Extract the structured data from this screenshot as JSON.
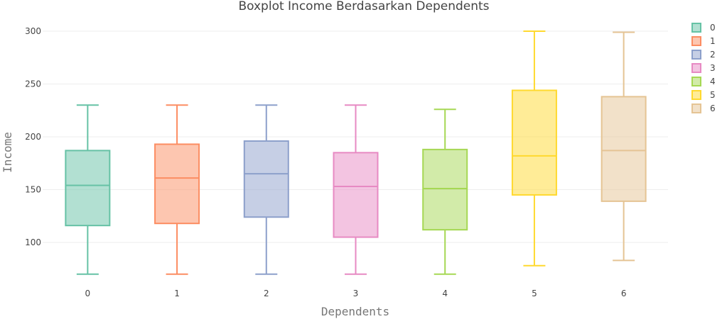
{
  "chart_data": {
    "type": "box",
    "title": "Boxplot Income Berdasarkan Dependents",
    "xlabel": "Dependents",
    "ylabel": "Income",
    "ylim": [
      60,
      305
    ],
    "yticks": [
      100,
      150,
      200,
      250,
      300
    ],
    "categories": [
      "0",
      "1",
      "2",
      "3",
      "4",
      "5",
      "6"
    ],
    "series": [
      {
        "name": "0",
        "color": "#66c2a5",
        "min": 70,
        "q1": 116,
        "median": 154,
        "q3": 187,
        "max": 230
      },
      {
        "name": "1",
        "color": "#fc8d62",
        "min": 70,
        "q1": 118,
        "median": 161,
        "q3": 193,
        "max": 230
      },
      {
        "name": "2",
        "color": "#8da0cb",
        "min": 70,
        "q1": 124,
        "median": 165,
        "q3": 196,
        "max": 230
      },
      {
        "name": "3",
        "color": "#e78ac3",
        "min": 70,
        "q1": 105,
        "median": 153,
        "q3": 185,
        "max": 230
      },
      {
        "name": "4",
        "color": "#a6d854",
        "min": 70,
        "q1": 112,
        "median": 151,
        "q3": 188,
        "max": 226
      },
      {
        "name": "5",
        "color": "#ffd92f",
        "min": 78,
        "q1": 145,
        "median": 182,
        "q3": 244,
        "max": 300
      },
      {
        "name": "6",
        "color": "#e5c494",
        "min": 83,
        "q1": 139,
        "median": 187,
        "q3": 238,
        "max": 299
      }
    ],
    "grid": true,
    "legend": "right"
  }
}
